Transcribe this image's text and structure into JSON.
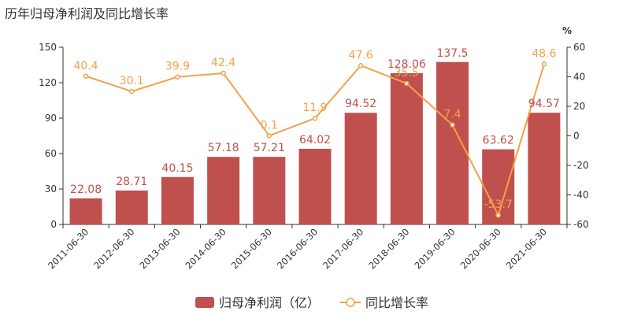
{
  "page": {
    "title": "历年归母净利润及同比增长率"
  },
  "chart_data": {
    "type": "bar",
    "categories": [
      "2011-06-30",
      "2012-06-30",
      "2013-06-30",
      "2014-06-30",
      "2015-06-30",
      "2016-06-30",
      "2017-06-30",
      "2018-06-30",
      "2019-06-30",
      "2020-06-30",
      "2021-06-30"
    ],
    "series": [
      {
        "name": "归母净利润（亿）",
        "type": "bar",
        "axis": "left",
        "color": "#c0504d",
        "values": [
          22.08,
          28.71,
          40.15,
          57.18,
          57.21,
          64.02,
          94.52,
          128.06,
          137.5,
          63.62,
          94.57
        ],
        "labels": [
          "22.08",
          "28.71",
          "40.15",
          "57.18",
          "57.21",
          "64.02",
          "94.52",
          "128.06",
          "137.5",
          "63.62",
          "94.57"
        ]
      },
      {
        "name": "同比增长率",
        "type": "line",
        "axis": "right",
        "color": "#f4a04a",
        "values": [
          40.4,
          30.1,
          39.9,
          42.4,
          0.1,
          11.9,
          47.6,
          35.5,
          7.4,
          -53.7,
          48.6
        ],
        "labels": [
          "40.4",
          "30.1",
          "39.9",
          "42.4",
          "0.1",
          "11.9",
          "47.6",
          "35.5",
          "7.4",
          "-53.7",
          "48.6"
        ]
      }
    ],
    "y_left": {
      "ylim": [
        0,
        150
      ],
      "ticks": [
        0,
        30,
        60,
        90,
        120,
        150
      ]
    },
    "y_right": {
      "ylim": [
        -60,
        60
      ],
      "ticks": [
        -60,
        -40,
        -20,
        0,
        20,
        40,
        60
      ],
      "unit": "%"
    },
    "legend_position": "bottom-center",
    "grid": false
  }
}
